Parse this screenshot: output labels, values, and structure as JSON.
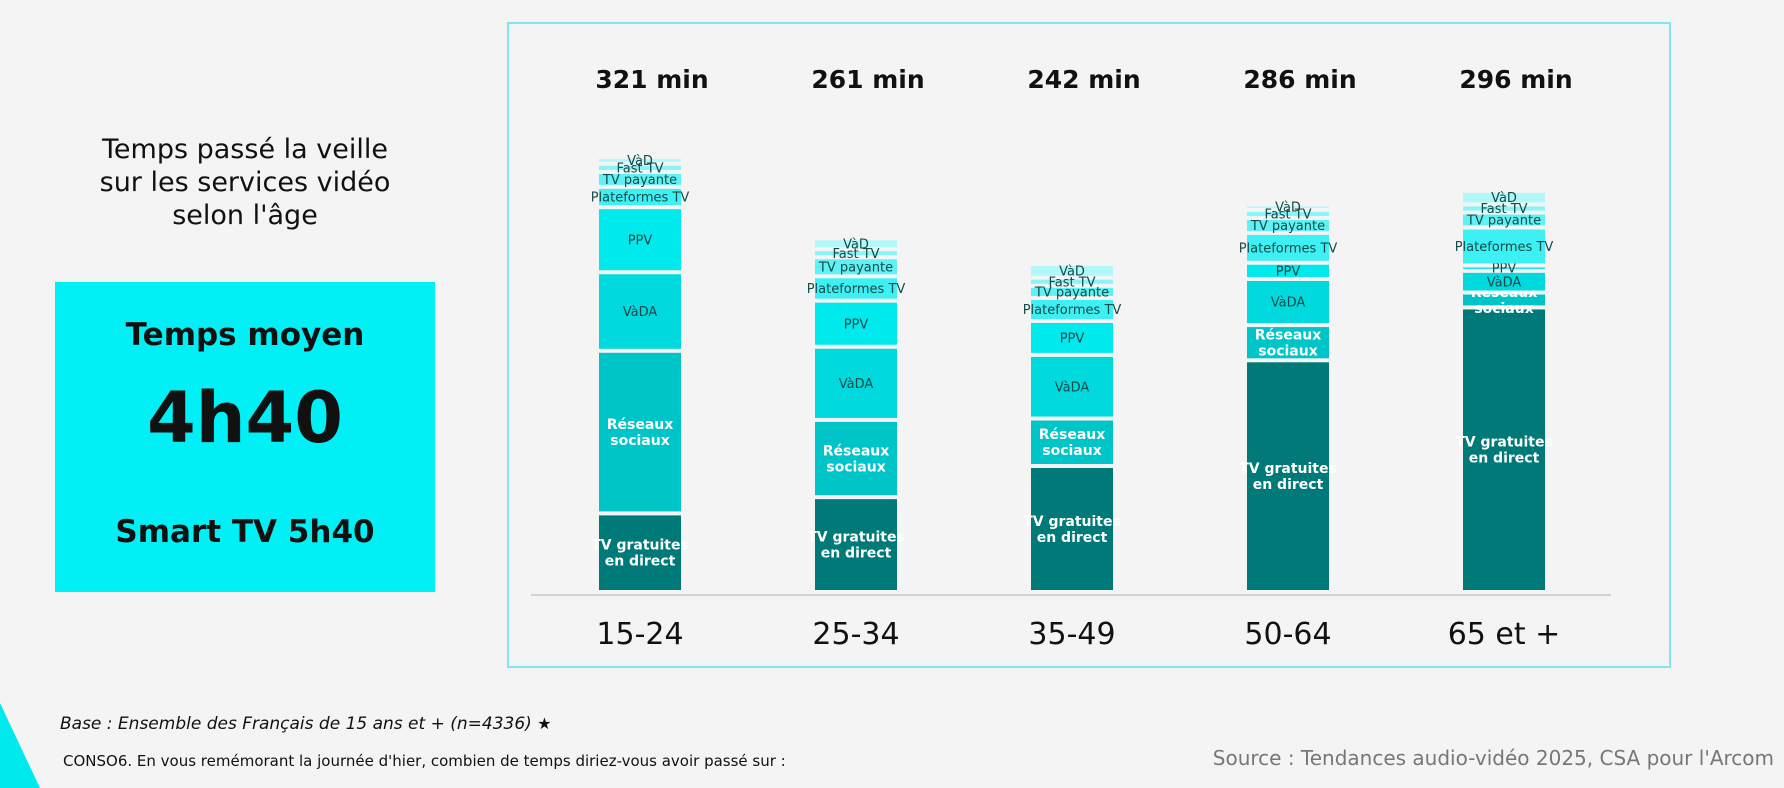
{
  "left_panel": {
    "title": "Temps passé la veille\nsur les services vidéo\nselon l'âge",
    "stat_label": "Temps moyen",
    "stat_value": "4h40",
    "stat_sub": "Smart TV 5h40"
  },
  "footer": {
    "base": "Base : Ensemble des Français de 15 ans et + (n=4336)",
    "question": "CONSO6. En vous remémorant la journée d'hier, combien de temps diriez-vous avoir passé sur :",
    "source": "Source : Tendances audio-vidéo 2025, CSA pour l'Arcom"
  },
  "colors": {
    "accent": "#00f0f5",
    "frame": "#7ee8ee",
    "tv_gratuites": "#007a78",
    "reseaux": "#00c5c8",
    "vada": "#00d9dd",
    "ppv": "#00eaee",
    "plateformes": "#3df0f3",
    "tv_payante": "#5ef2f5",
    "fast": "#8af5f7",
    "vad": "#b0f8fa"
  },
  "chart_data": {
    "type": "bar",
    "stacked": true,
    "unit": "min",
    "categories": [
      "15-24",
      "25-34",
      "35-49",
      "50-64",
      "65 et +"
    ],
    "totals_labels": [
      "321 min",
      "261 min",
      "242 min",
      "286 min",
      "296 min"
    ],
    "totals": [
      321,
      261,
      242,
      286,
      296
    ],
    "series": [
      {
        "name": "TV gratuites en direct",
        "label_lines": [
          "TV gratuites",
          "en direct"
        ],
        "color_key": "tv_gratuites",
        "text_color": "#ffffff",
        "bold": true,
        "values": [
          58,
          70,
          93,
          171,
          210
        ]
      },
      {
        "name": "Réseaux sociaux",
        "label_lines": [
          "Réseaux",
          "sociaux"
        ],
        "color_key": "reseaux",
        "text_color": "#ffffff",
        "bold": true,
        "values": [
          120,
          57,
          35,
          26,
          11
        ]
      },
      {
        "name": "VàDA",
        "label_lines": [
          "VàDA"
        ],
        "color_key": "vada",
        "text_color": "#134a4a",
        "bold": false,
        "values": [
          58,
          54,
          47,
          34,
          16
        ]
      },
      {
        "name": "PPV",
        "label_lines": [
          "PPV"
        ],
        "color_key": "ppv",
        "text_color": "#134a4a",
        "bold": false,
        "values": [
          48,
          34,
          25,
          12,
          4
        ]
      },
      {
        "name": "Plateformes TV",
        "label_lines": [
          "Plateformes TV"
        ],
        "color_key": "plateformes",
        "text_color": "#134a4a",
        "bold": false,
        "values": [
          15,
          18,
          17,
          22,
          28
        ]
      },
      {
        "name": "TV payante",
        "label_lines": [
          "TV payante"
        ],
        "color_key": "tv_payante",
        "text_color": "#134a4a",
        "bold": false,
        "values": [
          11,
          14,
          9,
          11,
          11
        ]
      },
      {
        "name": "Fast TV",
        "label_lines": [
          "Fast TV"
        ],
        "color_key": "fast",
        "text_color": "#134a4a",
        "bold": false,
        "values": [
          6,
          6,
          6,
          6,
          6
        ]
      },
      {
        "name": "VàD",
        "label_lines": [
          "VàD"
        ],
        "color_key": "vad",
        "text_color": "#134a4a",
        "bold": false,
        "values": [
          5,
          8,
          10,
          4,
          10
        ]
      }
    ],
    "ylim": [
      0,
      350
    ]
  }
}
